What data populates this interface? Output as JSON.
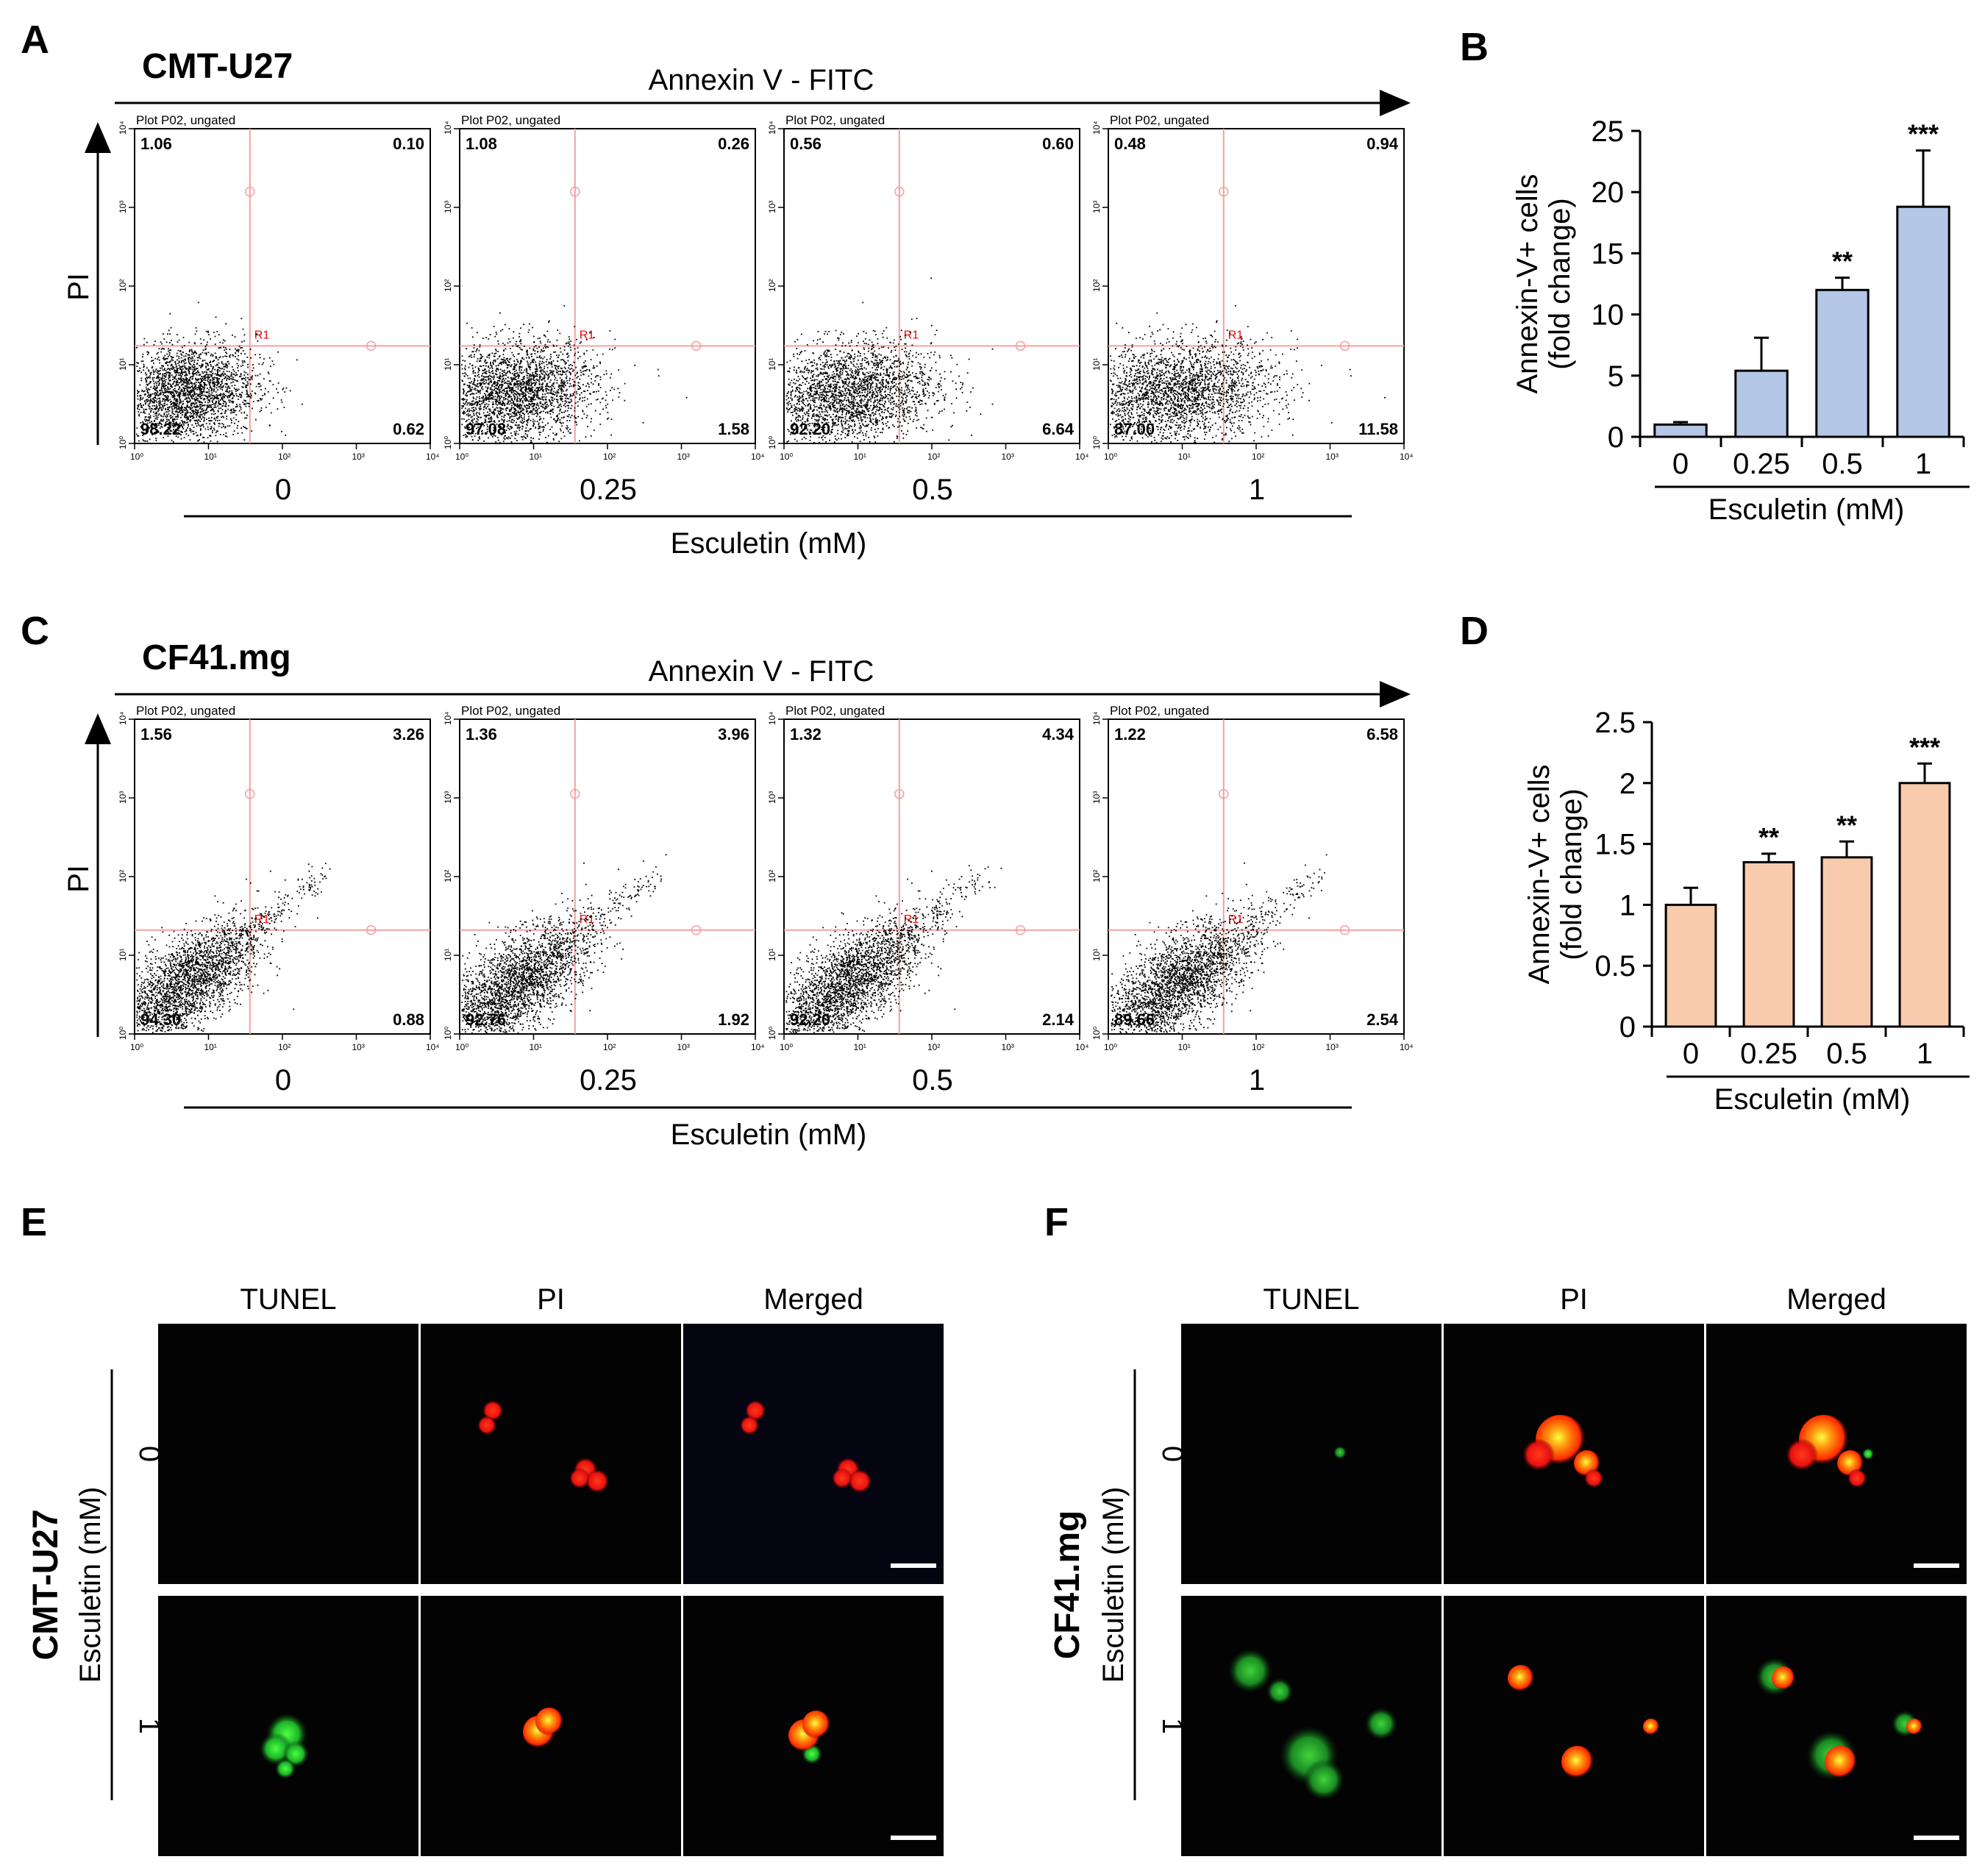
{
  "panels": {
    "A": "A",
    "B": "B",
    "C": "C",
    "D": "D",
    "E": "E",
    "F": "F"
  },
  "flow": [
    {
      "cell_line": "CMT-U27",
      "x_axis_title": "Annexin V - FITC",
      "y_axis_title": "PI",
      "condition_title": "Esculetin (mM)",
      "plots": [
        {
          "dose": "0",
          "header": "Plot P02, ungated",
          "gate": "R1",
          "ul": "1.06",
          "ur": "0.10",
          "ll": "98.22",
          "lr": "0.62"
        },
        {
          "dose": "0.25",
          "header": "Plot P02, ungated",
          "gate": "R1",
          "ul": "1.08",
          "ur": "0.26",
          "ll": "97.08",
          "lr": "1.58"
        },
        {
          "dose": "0.5",
          "header": "Plot P02, ungated",
          "gate": "R1",
          "ul": "0.56",
          "ur": "0.60",
          "ll": "92.20",
          "lr": "6.64"
        },
        {
          "dose": "1",
          "header": "Plot P02, ungated",
          "gate": "R1",
          "ul": "0.48",
          "ur": "0.94",
          "ll": "87.00",
          "lr": "11.58"
        }
      ]
    },
    {
      "cell_line": "CF41.mg",
      "x_axis_title": "Annexin V - FITC",
      "y_axis_title": "PI",
      "condition_title": "Esculetin (mM)",
      "plots": [
        {
          "dose": "0",
          "header": "Plot P02, ungated",
          "gate": "R1",
          "ul": "1.56",
          "ur": "3.26",
          "ll": "94.30",
          "lr": "0.88"
        },
        {
          "dose": "0.25",
          "header": "Plot P02, ungated",
          "gate": "R1",
          "ul": "1.36",
          "ur": "3.96",
          "ll": "92.76",
          "lr": "1.92"
        },
        {
          "dose": "0.5",
          "header": "Plot P02, ungated",
          "gate": "R1",
          "ul": "1.32",
          "ur": "4.34",
          "ll": "92.20",
          "lr": "2.14"
        },
        {
          "dose": "1",
          "header": "Plot P02, ungated",
          "gate": "R1",
          "ul": "1.22",
          "ur": "6.58",
          "ll": "89.66",
          "lr": "2.54"
        }
      ]
    }
  ],
  "chart_data": [
    {
      "type": "bar",
      "panel": "B",
      "categories": [
        "0",
        "0.25",
        "0.5",
        "1"
      ],
      "values": [
        1.0,
        5.4,
        12.0,
        18.8
      ],
      "errors": [
        0.2,
        2.7,
        1.0,
        4.6
      ],
      "significance": [
        "",
        "",
        "**",
        "***"
      ],
      "yticks": [
        "0",
        "5",
        "10",
        "15",
        "20",
        "25"
      ],
      "ylim": [
        0,
        25
      ],
      "xlabel": "Esculetin (mM)",
      "ylabel_line1": "Annexin-V+ cells",
      "ylabel_line2": "(fold change)",
      "color": "#b4c7e7"
    },
    {
      "type": "bar",
      "panel": "D",
      "categories": [
        "0",
        "0.25",
        "0.5",
        "1"
      ],
      "values": [
        1.0,
        1.35,
        1.39,
        2.0
      ],
      "errors": [
        0.14,
        0.07,
        0.13,
        0.16
      ],
      "significance": [
        "",
        "**",
        "**",
        "***"
      ],
      "yticks": [
        "0",
        "0.5",
        "1",
        "1.5",
        "2",
        "2.5"
      ],
      "ylim": [
        0,
        2.5
      ],
      "xlabel": "Esculetin (mM)",
      "ylabel_line1": "Annexin-V+ cells",
      "ylabel_line2": "(fold change)",
      "color": "#f8cbad"
    }
  ],
  "microscopy": [
    {
      "cell_line": "CMT-U27",
      "condition_title": "Esculetin (mM)",
      "columns": [
        "TUNEL",
        "PI",
        "Merged"
      ],
      "column_colors": [
        "#1db34a",
        "#ff1a1a",
        "#000000"
      ],
      "rows": [
        "0",
        "1"
      ]
    },
    {
      "cell_line": "CF41.mg",
      "condition_title": "Esculetin (mM)",
      "columns": [
        "TUNEL",
        "PI",
        "Merged"
      ],
      "column_colors": [
        "#1db34a",
        "#ff1a1a",
        "#000000"
      ],
      "rows": [
        "0",
        "1"
      ]
    }
  ]
}
